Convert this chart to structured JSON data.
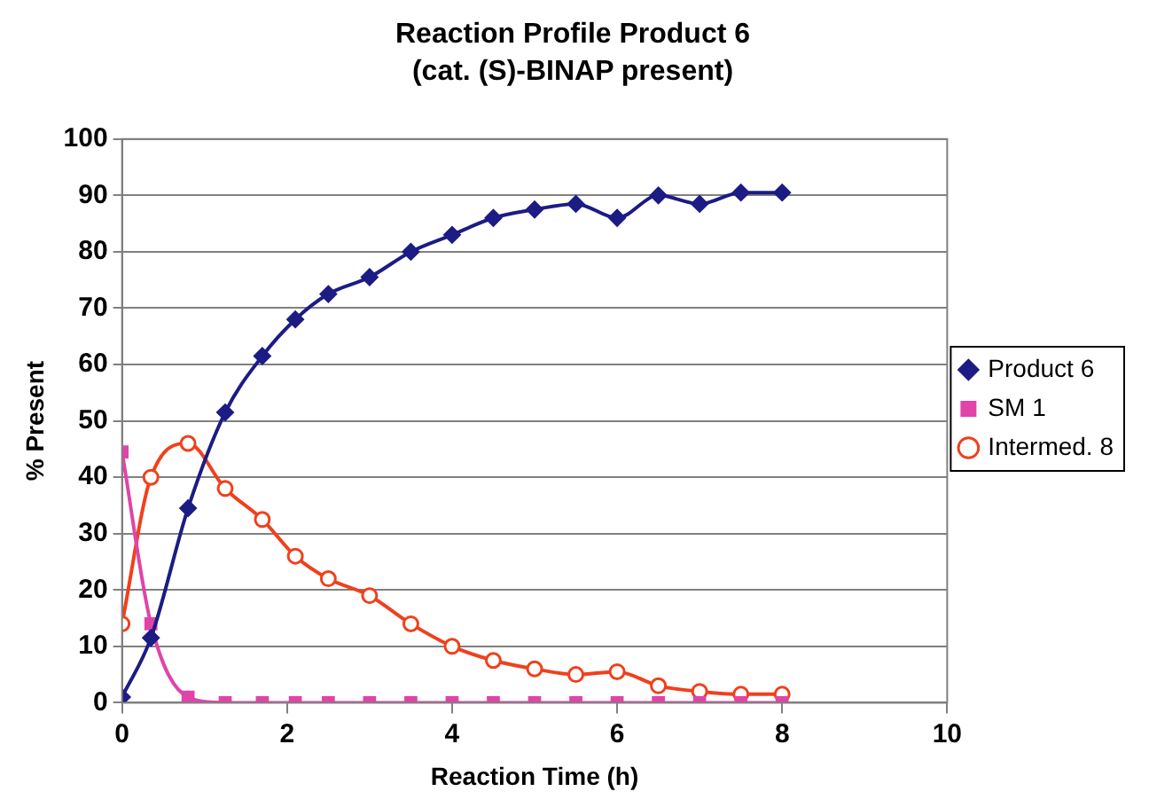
{
  "chart_data": {
    "type": "line",
    "title": "Reaction Profile Product 6",
    "subtitle": "(cat. (S)-BINAP present)",
    "xlabel": "Reaction Time (h)",
    "ylabel": "% Present",
    "x": [
      0,
      0.35,
      0.8,
      1.25,
      1.7,
      2.1,
      2.5,
      3,
      3.5,
      4,
      4.5,
      5,
      5.5,
      6,
      6.5,
      7,
      7.5,
      8
    ],
    "xlim": [
      0,
      10
    ],
    "xticks": [
      0,
      2,
      4,
      6,
      8,
      10
    ],
    "ylim": [
      0,
      100
    ],
    "yticks": [
      0,
      10,
      20,
      30,
      40,
      50,
      60,
      70,
      80,
      90,
      100
    ],
    "grid": "y",
    "legend": "right",
    "series": [
      {
        "name": "Product 6",
        "color": "#1c1c84",
        "marker": "diamond",
        "values": [
          1,
          11.5,
          34.5,
          51.5,
          61.5,
          68,
          72.5,
          75.5,
          80,
          83,
          86,
          87.5,
          88.5,
          86,
          90,
          88.5,
          90.5,
          90.5
        ]
      },
      {
        "name": "SM 1",
        "color": "#e044a8",
        "marker": "square",
        "values": [
          44.5,
          14,
          1,
          0,
          0,
          0,
          0,
          0,
          0,
          0,
          0,
          0,
          0,
          0,
          0,
          0,
          0,
          0
        ]
      },
      {
        "name": "Intermed. 8",
        "color": "#f0401c",
        "marker": "circle",
        "values": [
          14,
          40,
          46,
          38,
          32.5,
          26,
          22,
          19,
          14,
          10,
          7.5,
          6,
          5,
          5.5,
          3,
          2,
          1.5,
          1.5
        ]
      }
    ]
  }
}
